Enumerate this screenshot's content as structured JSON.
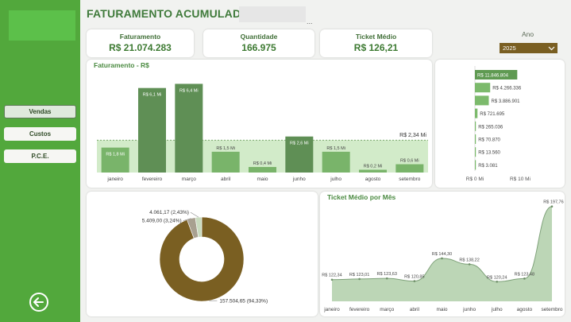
{
  "sidebar": {
    "nav": [
      "Vendas",
      "Custos",
      "P.C.E."
    ],
    "back_icon": "back-arrow-icon"
  },
  "header": {
    "title": "FATURAMENTO ACUMULADO",
    "more_label": "..."
  },
  "kpis": [
    {
      "label": "Faturamento",
      "value": "R$ 21.074.283"
    },
    {
      "label": "Quantidade",
      "value": "166.975"
    },
    {
      "label": "Ticket Médio",
      "value": "R$ 126,21"
    }
  ],
  "filter": {
    "label": "Ano",
    "selected": "2025"
  },
  "colors": {
    "green": "#52a83c",
    "brown": "#7a5f22",
    "dark_bar": "#5f8f55",
    "light_bar": "#79b46a"
  },
  "chart_data": [
    {
      "type": "bar",
      "title": "Faturamento - R$",
      "categories": [
        "janeiro",
        "fevereiro",
        "março",
        "abril",
        "maio",
        "junho",
        "julho",
        "agosto",
        "setembro"
      ],
      "values": [
        1.8,
        6.1,
        6.4,
        1.5,
        0.4,
        2.6,
        1.5,
        0.2,
        0.6
      ],
      "labels": [
        "R$ 1,8 Mi",
        "R$ 6,1 Mi",
        "R$ 6,4 Mi",
        "R$ 1,5 Mi",
        "R$ 0,4 Mi",
        "R$ 2,6 Mi",
        "R$ 1,5 Mi",
        "R$ 0,2 Mi",
        "R$ 0,6 Mi"
      ],
      "reference_line": {
        "value": 2.34,
        "label": "R$ 2,34 Mi"
      },
      "ylim": [
        0,
        7
      ]
    },
    {
      "type": "bar",
      "orientation": "horizontal",
      "values": [
        11846804,
        4266336,
        3886901,
        721695,
        265036,
        70870,
        13560,
        3081
      ],
      "labels": [
        "R$ 11.846.804",
        "R$ 4.266.336",
        "R$ 3.886.901",
        "R$ 721.695",
        "R$ 265.036",
        "R$ 70.870",
        "R$ 13.560",
        "R$ 3.081"
      ],
      "xticks": [
        "R$ 0 Mi",
        "R$ 10 Mi"
      ],
      "xlim": [
        0,
        12000000
      ]
    },
    {
      "type": "pie",
      "donut": true,
      "values": [
        157504.65,
        5409.0,
        4061.17
      ],
      "percents": [
        94.33,
        3.24,
        2.43
      ],
      "labels": [
        "157.504,65 (94,33%)",
        "5.409,00 (3,24%)",
        "4.061,17 (2,43%)"
      ],
      "colors": [
        "#7a5f22",
        "#a8a090",
        "#c9dbbf"
      ]
    },
    {
      "type": "area",
      "title": "Ticket Médio por Mês",
      "categories": [
        "janeiro",
        "fevereiro",
        "março",
        "abril",
        "maio",
        "junho",
        "julho",
        "agosto",
        "setembro"
      ],
      "values": [
        122.34,
        123.01,
        123.63,
        120.85,
        144.3,
        138.22,
        120.24,
        123.48,
        197.76
      ],
      "labels": [
        "R$ 122,34",
        "R$ 123,01",
        "R$ 123,63",
        "R$ 120,85",
        "R$ 144,30",
        "R$ 138,22",
        "R$ 120,24",
        "R$ 123,48",
        "R$ 197,76"
      ],
      "ylim": [
        0,
        200
      ]
    }
  ]
}
